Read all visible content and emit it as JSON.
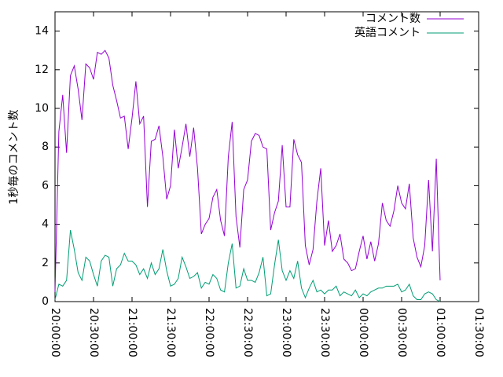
{
  "chart_data": {
    "type": "line",
    "ylabel": "1秒毎のコメント数",
    "x": [
      0,
      3,
      6,
      9,
      12,
      15,
      18,
      21,
      24,
      27,
      30,
      33,
      36,
      39,
      42,
      45,
      48,
      51,
      54,
      57,
      60,
      63,
      66,
      69,
      72,
      75,
      78,
      81,
      84,
      87,
      90,
      93,
      96,
      99,
      102,
      105,
      108,
      111,
      114,
      117,
      120,
      123,
      126,
      129,
      132,
      135,
      138,
      141,
      144,
      147,
      150,
      153,
      156,
      159,
      162,
      165,
      168,
      171,
      174,
      177,
      180,
      183,
      186,
      189,
      192,
      195,
      198,
      201,
      204,
      207,
      210,
      213,
      216,
      219,
      222,
      225,
      228,
      231,
      234,
      237,
      240,
      243,
      246,
      249,
      252,
      255,
      258,
      261,
      264,
      267,
      270,
      273,
      276,
      279,
      282,
      285,
      288,
      291,
      294,
      297,
      300
    ],
    "series": [
      {
        "name": "コメント数",
        "color": "#9400d3",
        "values": [
          0.5,
          8.8,
          10.7,
          7.7,
          11.7,
          12.2,
          11,
          9.4,
          12.3,
          12.1,
          11.5,
          12.9,
          12.8,
          13,
          12.6,
          11.2,
          10.4,
          9.5,
          9.6,
          7.9,
          9.5,
          11.4,
          9.2,
          9.6,
          4.9,
          8.3,
          8.4,
          9.1,
          7.5,
          5.3,
          6,
          8.9,
          6.9,
          8,
          9.2,
          7.5,
          9,
          6.9,
          3.5,
          4,
          4.3,
          5.4,
          5.8,
          4.2,
          3.4,
          7.5,
          9.3,
          4.4,
          2.8,
          5.8,
          6.3,
          8.3,
          8.7,
          8.6,
          8,
          7.9,
          3.7,
          4.6,
          5.2,
          8.1,
          4.9,
          4.9,
          8.4,
          7.6,
          7.2,
          2.9,
          1.9,
          2.7,
          5.2,
          6.9,
          2.9,
          4.2,
          2.6,
          2.9,
          3.5,
          2.2,
          2,
          1.6,
          1.7,
          2.6,
          3.4,
          2.2,
          3.1,
          2.1,
          3,
          5.1,
          4.2,
          3.9,
          4.7,
          6,
          5.1,
          4.8,
          6.1,
          3.3,
          2.3,
          1.8,
          2.9,
          6.3,
          2.6,
          7.4,
          1.1
        ]
      },
      {
        "name": "英語コメント",
        "color": "#009e73",
        "values": [
          0.1,
          0.9,
          0.8,
          1.1,
          3.7,
          2.7,
          1.5,
          1.1,
          2.3,
          2.1,
          1.4,
          0.8,
          2.1,
          2.4,
          2.3,
          0.8,
          1.7,
          1.9,
          2.5,
          2.1,
          2.1,
          1.9,
          1.4,
          1.7,
          1.2,
          2,
          1.4,
          1.7,
          2.7,
          1.6,
          0.8,
          0.9,
          1.2,
          2.3,
          1.8,
          1.2,
          1.3,
          1.5,
          0.7,
          1,
          0.9,
          1.4,
          1.2,
          0.6,
          0.5,
          2,
          3,
          0.7,
          0.8,
          1.7,
          1.1,
          1.1,
          1,
          1.5,
          2.3,
          0.3,
          0.4,
          1.9,
          3.2,
          1.6,
          1.1,
          1.6,
          1.2,
          2.1,
          0.7,
          0.2,
          0.7,
          1.1,
          0.5,
          0.6,
          0.4,
          0.6,
          0.6,
          0.8,
          0.3,
          0.5,
          0.4,
          0.3,
          0.6,
          0.2,
          0.4,
          0.3,
          0.5,
          0.6,
          0.7,
          0.7,
          0.8,
          0.8,
          0.8,
          0.9,
          0.5,
          0.6,
          0.9,
          0.3,
          0.1,
          0.1,
          0.4,
          0.5,
          0.4,
          0.1,
          0
        ]
      }
    ],
    "xlim": [
      0,
      330
    ],
    "xticks": [
      {
        "value": 0,
        "label": "20:00:00"
      },
      {
        "value": 30,
        "label": "20:30:00"
      },
      {
        "value": 60,
        "label": "21:00:00"
      },
      {
        "value": 90,
        "label": "21:30:00"
      },
      {
        "value": 120,
        "label": "22:00:00"
      },
      {
        "value": 150,
        "label": "22:30:00"
      },
      {
        "value": 180,
        "label": "23:00:00"
      },
      {
        "value": 210,
        "label": "23:30:00"
      },
      {
        "value": 240,
        "label": "00:00:00"
      },
      {
        "value": 270,
        "label": "00:30:00"
      },
      {
        "value": 300,
        "label": "01:00:00"
      },
      {
        "value": 330,
        "label": "01:30:00"
      }
    ],
    "ylim": [
      0,
      15
    ],
    "yticks": [
      0,
      2,
      4,
      6,
      8,
      10,
      12,
      14
    ],
    "legend": "top-right"
  }
}
